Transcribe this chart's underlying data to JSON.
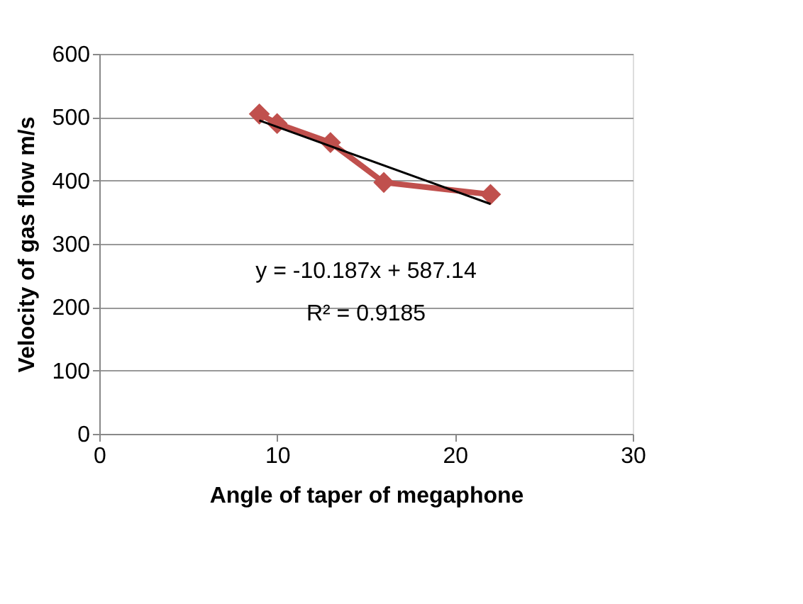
{
  "chart_data": {
    "type": "line",
    "xlabel": "Angle of taper of megaphone",
    "ylabel": "Velocity of gas flow m/s",
    "series": [
      {
        "color": "#c0504d",
        "x": [
          9,
          10,
          13,
          16,
          22
        ],
        "values": [
          505,
          490,
          460,
          397,
          378
        ],
        "marker": "diamond"
      },
      {
        "color": "#000000",
        "x": [
          9,
          22
        ],
        "values": [
          495,
          363
        ],
        "marker": "none"
      }
    ],
    "annotations": [
      "y = -10.187x + 587.14",
      "R² = 0.9185"
    ],
    "xlim": [
      0,
      30
    ],
    "xticks": [
      0,
      10,
      20,
      30
    ],
    "ylim": [
      0,
      600
    ],
    "yticks": [
      0,
      100,
      200,
      300,
      400,
      500,
      600
    ],
    "grid": "y"
  }
}
